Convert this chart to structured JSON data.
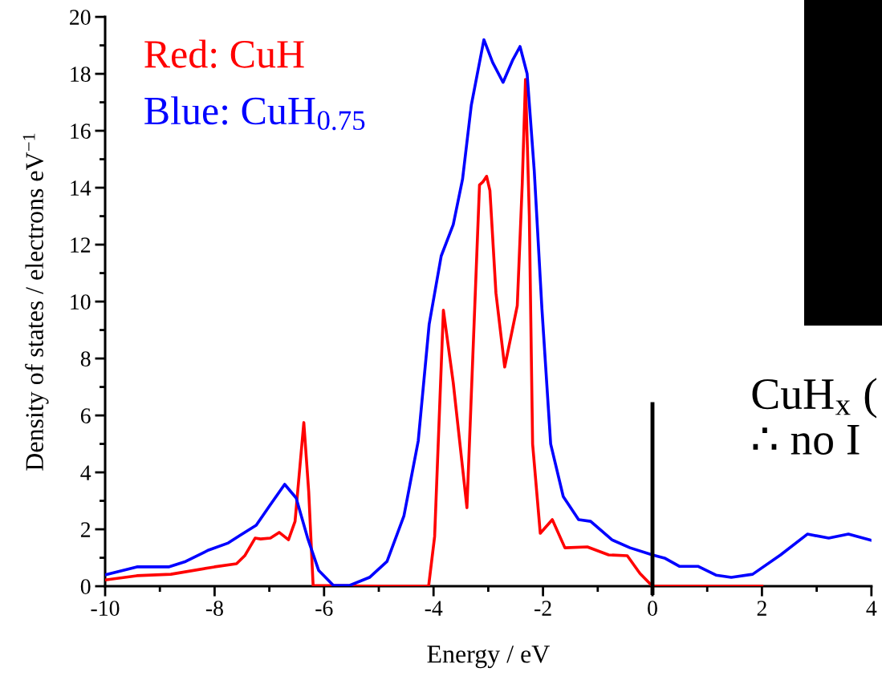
{
  "chart_data": {
    "type": "line",
    "xlabel": "Energy / eV",
    "ylabel": "Density of states / electrons eV$^{−1}$",
    "xlim": [
      -10,
      4
    ],
    "xticks": [
      -10,
      -8,
      -6,
      -4,
      -2,
      0,
      2,
      4
    ],
    "ylim": [
      0,
      20
    ],
    "yticks": [
      0,
      2,
      4,
      6,
      8,
      10,
      12,
      14,
      16,
      18,
      20
    ],
    "grid": false,
    "legend": "top left",
    "marker": "none",
    "line_style": "solid",
    "ref_lines": [
      {
        "axis": "x",
        "value": 0,
        "color": "#000000"
      }
    ],
    "annotations": [
      "CuH$_{x}$ (",
      "∴ no I"
    ],
    "series": [
      {
        "name": "Red: CuH",
        "color": "#ff0000",
        "x": [
          -10,
          -9.42,
          -8.8,
          -8.0,
          -7.6,
          -7.45,
          -7.26,
          -7.16,
          -6.98,
          -6.82,
          -6.65,
          -6.53,
          -6.37,
          -6.28,
          -6.2,
          -5.0,
          -4.09,
          -3.98,
          -3.82,
          -3.64,
          -3.39,
          -3.16,
          -3.1,
          -3.03,
          -2.97,
          -2.86,
          -2.7,
          -2.47,
          -2.38,
          -2.32,
          -2.25,
          -2.19,
          -2.05,
          -1.83,
          -1.6,
          -1.19,
          -0.8,
          -0.46,
          -0.23,
          0,
          1,
          2
        ],
        "values": [
          0.22,
          0.37,
          0.42,
          0.68,
          0.79,
          1.07,
          1.69,
          1.66,
          1.69,
          1.89,
          1.63,
          2.28,
          5.75,
          3.3,
          0.03,
          0,
          0,
          1.75,
          9.7,
          7.15,
          2.76,
          14.1,
          14.2,
          14.4,
          13.9,
          10.3,
          7.7,
          9.86,
          14.1,
          17.8,
          13.0,
          5.0,
          1.86,
          2.34,
          1.35,
          1.38,
          1.1,
          1.07,
          0.45,
          0,
          0,
          0
        ]
      },
      {
        "name": "Blue: CuH$_{0.75}$",
        "color": "#0000ff",
        "x": [
          -10,
          -9.42,
          -8.84,
          -8.53,
          -8.11,
          -7.75,
          -7.55,
          -7.24,
          -6.98,
          -6.72,
          -6.51,
          -6.3,
          -6.1,
          -5.83,
          -5.53,
          -5.17,
          -4.85,
          -4.54,
          -4.28,
          -4.08,
          -3.86,
          -3.64,
          -3.47,
          -3.31,
          -3.08,
          -2.92,
          -2.73,
          -2.55,
          -2.42,
          -2.29,
          -2.16,
          -2.02,
          -1.86,
          -1.63,
          -1.35,
          -1.13,
          -0.74,
          -0.41,
          0,
          0.22,
          0.49,
          0.83,
          1.16,
          1.44,
          1.83,
          2.34,
          2.83,
          3.22,
          3.58,
          4.0
        ],
        "values": [
          0.4,
          0.68,
          0.68,
          0.87,
          1.27,
          1.52,
          1.77,
          2.14,
          2.87,
          3.58,
          3.1,
          1.69,
          0.56,
          0.03,
          0.03,
          0.31,
          0.87,
          2.48,
          5.1,
          9.2,
          11.6,
          12.7,
          14.3,
          16.9,
          19.2,
          18.4,
          17.7,
          18.5,
          18.96,
          18.0,
          14.6,
          9.75,
          5.0,
          3.15,
          2.34,
          2.28,
          1.63,
          1.35,
          1.1,
          0.99,
          0.7,
          0.7,
          0.39,
          0.31,
          0.42,
          1.1,
          1.83,
          1.69,
          1.83,
          1.61
        ]
      }
    ]
  }
}
